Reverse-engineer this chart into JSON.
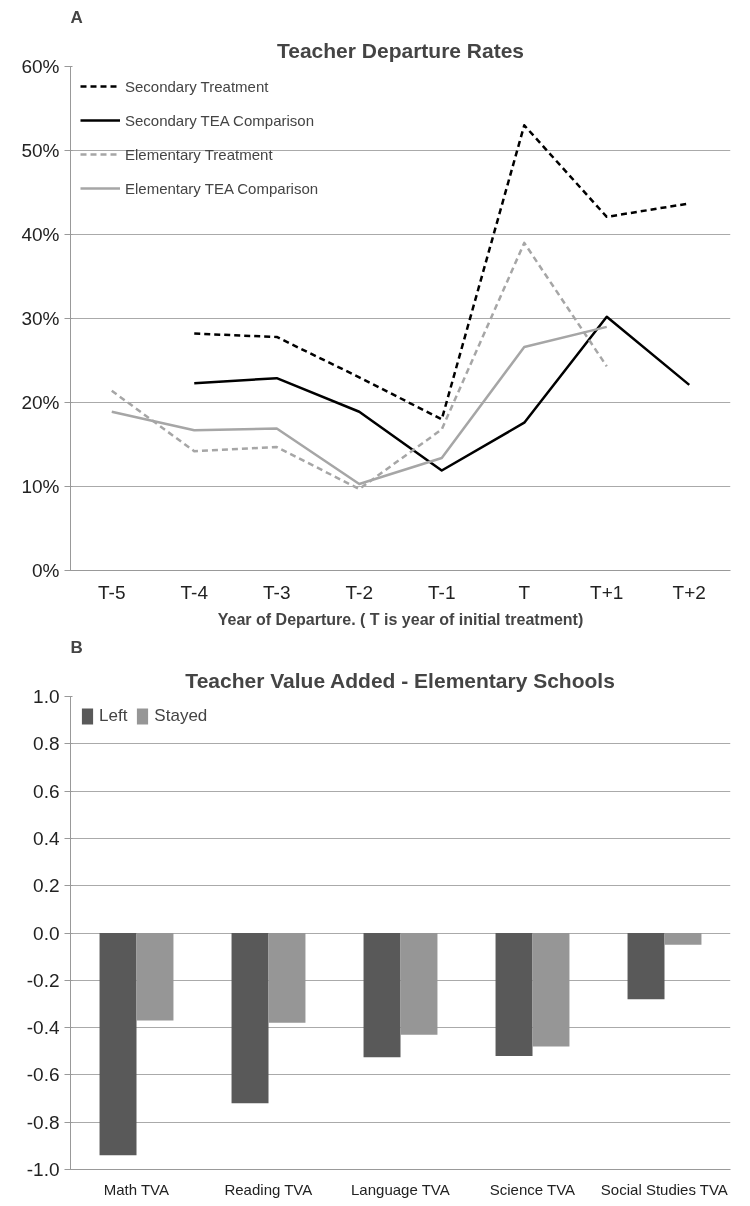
{
  "chart_data": [
    {
      "type": "line",
      "title": "Teacher Departure Rates",
      "xlabel": "Year of Departure. ( T is year of initial treatment)",
      "annotations": [
        "A"
      ],
      "categories": [
        "T-5",
        "T-4",
        "T-3",
        "T-2",
        "T-1",
        "T",
        "T+1",
        "T+2"
      ],
      "series": [
        {
          "name": "Secondary Treatment",
          "color": "#000000",
          "line_style": "dashed",
          "values": [
            null,
            28.2,
            27.8,
            23.0,
            18.0,
            53.0,
            42.1,
            43.7
          ]
        },
        {
          "name": "Secondary TEA Comparison",
          "color": "#000000",
          "line_style": "solid",
          "values": [
            null,
            22.3,
            22.9,
            18.9,
            11.9,
            17.6,
            30.2,
            22.1
          ]
        },
        {
          "name": "Elementary Treatment",
          "color": "#a6a6a6",
          "line_style": "dashed",
          "values": [
            21.4,
            14.2,
            14.7,
            9.7,
            16.8,
            39.0,
            24.3,
            null
          ]
        },
        {
          "name": "Elementary TEA Comparison",
          "color": "#a6a6a6",
          "line_style": "solid",
          "values": [
            18.9,
            16.7,
            16.9,
            10.3,
            13.4,
            26.6,
            29.0,
            null
          ]
        }
      ],
      "ylim": [
        0,
        60
      ],
      "yticks": [
        {
          "value": 0,
          "label": "0%"
        },
        {
          "value": 10,
          "label": "10%"
        },
        {
          "value": 20,
          "label": "20%"
        },
        {
          "value": 30,
          "label": "30%"
        },
        {
          "value": 40,
          "label": "40%"
        },
        {
          "value": 50,
          "label": "50%"
        },
        {
          "value": 60,
          "label": "60%"
        }
      ],
      "grid": "y",
      "legend": "top left"
    },
    {
      "type": "bar",
      "title": "Teacher Value Added - Elementary Schools",
      "annotations": [
        "B"
      ],
      "categories": [
        "Math TVA",
        "Reading TVA",
        "Language TVA",
        "Science TVA",
        "Social Studies TVA"
      ],
      "series": [
        {
          "name": "Left",
          "color": "#595959",
          "values": [
            -0.94,
            -0.72,
            -0.525,
            -0.52,
            -0.28
          ]
        },
        {
          "name": "Stayed",
          "color": "#969696",
          "values": [
            -0.37,
            -0.38,
            -0.43,
            -0.48,
            -0.05
          ]
        }
      ],
      "ylim": [
        -1.0,
        1.0
      ],
      "yticks": [
        {
          "value": -1.0,
          "label": "-1.0"
        },
        {
          "value": -0.8,
          "label": "-0.8"
        },
        {
          "value": -0.6,
          "label": "-0.6"
        },
        {
          "value": -0.4,
          "label": "-0.4"
        },
        {
          "value": -0.2,
          "label": "-0.2"
        },
        {
          "value": 0.0,
          "label": "0.0"
        },
        {
          "value": 0.2,
          "label": "0.2"
        },
        {
          "value": 0.4,
          "label": "0.4"
        },
        {
          "value": 0.6,
          "label": "0.6"
        },
        {
          "value": 0.8,
          "label": "0.8"
        },
        {
          "value": 1.0,
          "label": "1.0"
        }
      ],
      "grid": "y",
      "legend": "top left"
    }
  ]
}
